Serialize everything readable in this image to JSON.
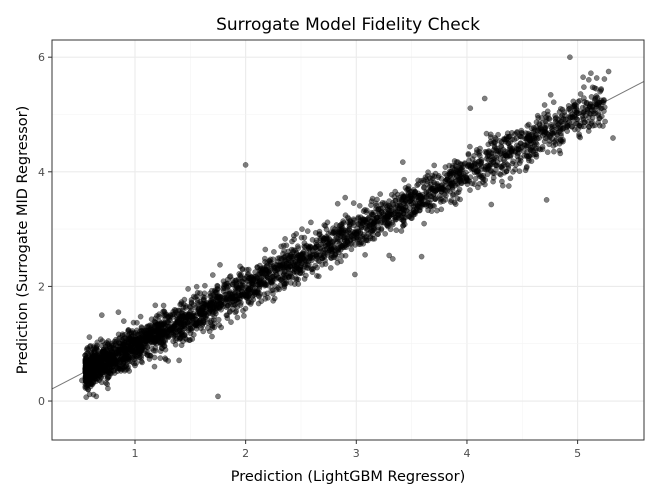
{
  "chart_data": {
    "type": "scatter",
    "title": "Surrogate Model Fidelity Check",
    "xlabel": "Prediction (LightGBM Regressor)",
    "ylabel": "Prediction (Surrogate MID Regressor)",
    "xlim": [
      0.25,
      5.6
    ],
    "ylim": [
      -0.68,
      6.3
    ],
    "x_ticks": [
      1,
      2,
      3,
      4,
      5
    ],
    "y_ticks": [
      0,
      2,
      4,
      6
    ],
    "grid": true,
    "reference_line": {
      "slope": 1.003,
      "intercept": -0.04
    },
    "point_color": "#000000",
    "point_alpha": 0.5,
    "points": [
      [
        0.52,
        0.36
      ],
      [
        0.65,
        0.08
      ],
      [
        1.75,
        0.08
      ],
      [
        2.0,
        4.12
      ],
      [
        5.12,
        5.72
      ],
      [
        4.93,
        6.0
      ],
      [
        5.28,
        5.75
      ],
      [
        4.16,
        5.28
      ],
      [
        4.03,
        5.11
      ],
      [
        5.32,
        4.59
      ],
      [
        4.72,
        3.51
      ],
      [
        4.22,
        3.43
      ],
      [
        3.59,
        2.52
      ],
      [
        3.33,
        2.48
      ],
      [
        3.42,
        4.17
      ],
      [
        1.0,
        0.62
      ],
      [
        0.58,
        0.34
      ],
      [
        1.51,
        1.24
      ],
      [
        5.05,
        5.65
      ],
      [
        4.85,
        4.55
      ],
      [
        0.7,
        1.5
      ],
      [
        0.85,
        1.55
      ],
      [
        1.95,
        2.35
      ],
      [
        2.9,
        3.55
      ],
      [
        1.3,
        0.7
      ]
    ],
    "band": {
      "x_range": [
        0.55,
        5.25
      ],
      "slope": 1.003,
      "intercept": -0.04,
      "spread_sd": 0.19,
      "count": 3200
    }
  }
}
